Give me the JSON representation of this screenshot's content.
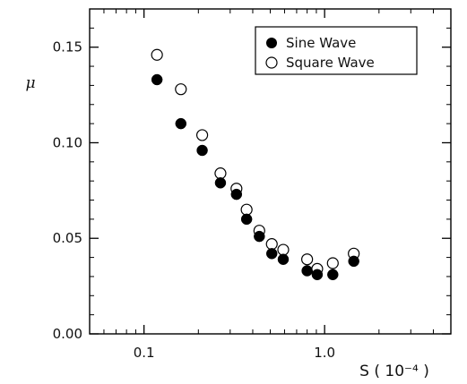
{
  "chart_data": {
    "type": "scatter",
    "title": "",
    "xlabel": "S ( 10⁻⁴ )",
    "ylabel": "μ",
    "x_scale": "log",
    "xlim": [
      0.05,
      5.0
    ],
    "ylim": [
      0.0,
      0.17
    ],
    "x_ticks": [
      0.1,
      1.0
    ],
    "x_tick_labels": [
      "0.1",
      "1.0"
    ],
    "y_ticks": [
      0.0,
      0.05,
      0.1,
      0.15
    ],
    "y_tick_labels": [
      "0.00",
      "0.05",
      "0.10",
      "0.15"
    ],
    "grid": false,
    "legend_position": "top-right",
    "series": [
      {
        "name": "Sine Wave",
        "marker": "filled-circle",
        "color": "#000000",
        "points": [
          [
            0.118,
            0.133
          ],
          [
            0.16,
            0.11
          ],
          [
            0.21,
            0.096
          ],
          [
            0.265,
            0.079
          ],
          [
            0.325,
            0.073
          ],
          [
            0.37,
            0.06
          ],
          [
            0.435,
            0.051
          ],
          [
            0.51,
            0.042
          ],
          [
            0.59,
            0.039
          ],
          [
            0.8,
            0.033
          ],
          [
            0.91,
            0.031
          ],
          [
            1.11,
            0.031
          ],
          [
            1.45,
            0.038
          ]
        ]
      },
      {
        "name": "Square Wave",
        "marker": "open-circle",
        "color": "#000000",
        "points": [
          [
            0.118,
            0.146
          ],
          [
            0.16,
            0.128
          ],
          [
            0.21,
            0.104
          ],
          [
            0.265,
            0.084
          ],
          [
            0.325,
            0.076
          ],
          [
            0.37,
            0.065
          ],
          [
            0.435,
            0.054
          ],
          [
            0.51,
            0.047
          ],
          [
            0.59,
            0.044
          ],
          [
            0.8,
            0.039
          ],
          [
            0.91,
            0.034
          ],
          [
            1.11,
            0.037
          ],
          [
            1.45,
            0.042
          ]
        ]
      }
    ]
  }
}
